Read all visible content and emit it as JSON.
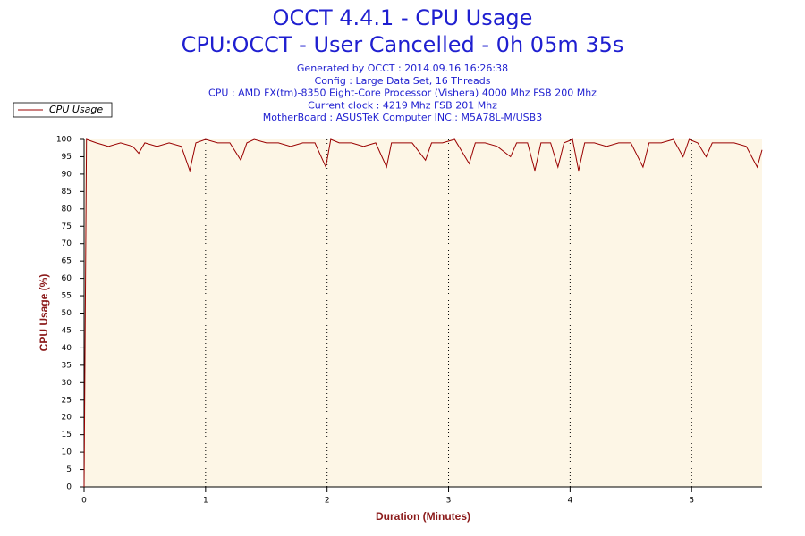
{
  "chart_data": {
    "type": "line",
    "title": "OCCT 4.4.1 - CPU Usage",
    "subtitle": "CPU:OCCT - User Cancelled - 0h 05m 35s",
    "notes": [
      "Generated by OCCT : 2014.09.16 16:26:38",
      "Config : Large Data Set, 16 Threads",
      "CPU : AMD FX(tm)-8350 Eight-Core Processor (Vishera) 4000 Mhz FSB 200 Mhz",
      "Current clock : 4219 Mhz FSB 201 Mhz",
      "MotherBoard : ASUSTeK Computer INC.: M5A78L-M/USB3"
    ],
    "x_label": "Duration (Minutes)",
    "y_label": "CPU Usage (%)",
    "x": [
      0,
      0.02,
      0.1,
      0.2,
      0.3,
      0.4,
      0.45,
      0.5,
      0.6,
      0.7,
      0.8,
      0.87,
      0.92,
      1.0,
      1.1,
      1.2,
      1.29,
      1.34,
      1.4,
      1.5,
      1.6,
      1.7,
      1.8,
      1.9,
      1.99,
      2.03,
      2.1,
      2.2,
      2.3,
      2.4,
      2.49,
      2.53,
      2.6,
      2.7,
      2.81,
      2.86,
      2.95,
      3.05,
      3.17,
      3.22,
      3.3,
      3.4,
      3.51,
      3.56,
      3.65,
      3.71,
      3.76,
      3.84,
      3.9,
      3.95,
      4.02,
      4.07,
      4.12,
      4.2,
      4.3,
      4.4,
      4.5,
      4.6,
      4.65,
      4.75,
      4.85,
      4.93,
      4.98,
      5.05,
      5.12,
      5.17,
      5.25,
      5.35,
      5.45,
      5.54,
      5.58
    ],
    "series": [
      {
        "name": "CPU Usage",
        "color": "#990000",
        "values": [
          0,
          100,
          99,
          98,
          99,
          98,
          96,
          99,
          98,
          99,
          98,
          91,
          99,
          100,
          99,
          99,
          94,
          99,
          100,
          99,
          99,
          98,
          99,
          99,
          92,
          100,
          99,
          99,
          98,
          99,
          92,
          99,
          99,
          99,
          94,
          99,
          99,
          100,
          93,
          99,
          99,
          98,
          95,
          99,
          99,
          91,
          99,
          99,
          92,
          99,
          100,
          91,
          99,
          99,
          98,
          99,
          99,
          92,
          99,
          99,
          100,
          95,
          100,
          99,
          95,
          99,
          99,
          99,
          98,
          92,
          97
        ]
      }
    ],
    "xlim": [
      0,
      5.58
    ],
    "ylim": [
      0,
      100
    ],
    "xticks": [
      0,
      1,
      2,
      3,
      4,
      5
    ],
    "yticks": [
      0,
      5,
      10,
      15,
      20,
      25,
      30,
      35,
      40,
      45,
      50,
      55,
      60,
      65,
      70,
      75,
      80,
      85,
      90,
      95,
      100
    ],
    "grid": "x",
    "legend": "top-left"
  }
}
